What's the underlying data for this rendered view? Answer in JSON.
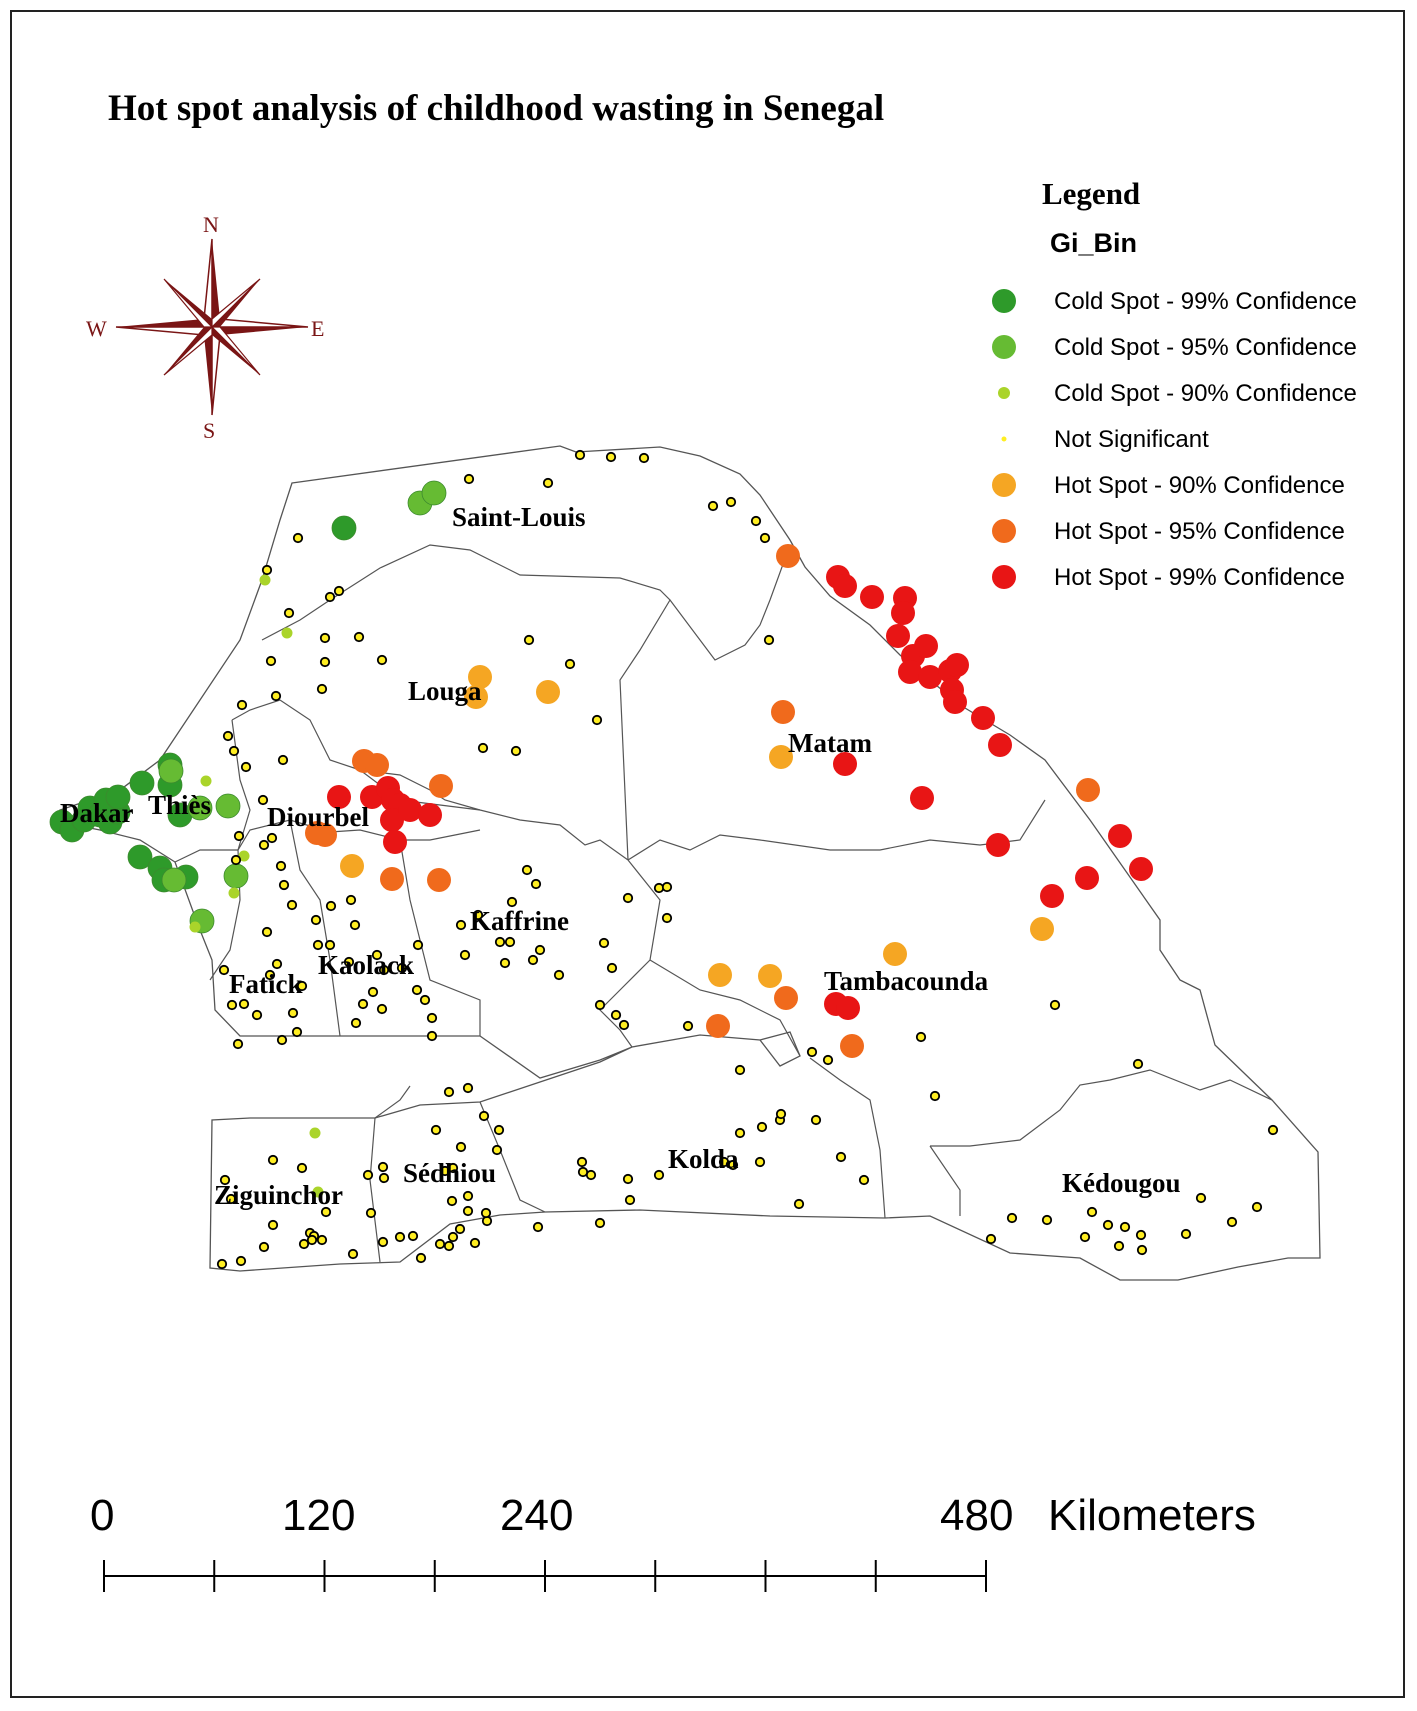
{
  "title": "Hot spot analysis of childhood wasting in Senegal",
  "compass": {
    "north": "N",
    "south": "S",
    "east": "E",
    "west": "W"
  },
  "legend": {
    "title": "Legend",
    "field": "Gi_Bin",
    "items": [
      {
        "key": "cold99",
        "label": "Cold Spot - 99% Confidence",
        "color": "#2e9a2a"
      },
      {
        "key": "cold95",
        "label": "Cold Spot - 95% Confidence",
        "color": "#66bb33"
      },
      {
        "key": "cold90",
        "label": "Cold Spot - 90% Confidence",
        "color": "#aad42a"
      },
      {
        "key": "ns",
        "label": "Not Significant",
        "color": "#ffee22"
      },
      {
        "key": "hot90",
        "label": "Hot Spot - 90% Confidence",
        "color": "#f5a623"
      },
      {
        "key": "hot95",
        "label": "Hot Spot - 95% Confidence",
        "color": "#f06a1c"
      },
      {
        "key": "hot99",
        "label": "Hot Spot - 99% Confidence",
        "color": "#e81515"
      }
    ]
  },
  "regions": [
    "Saint-Louis",
    "Louga",
    "Matam",
    "Dakar",
    "Thiès",
    "Diourbel",
    "Kaffrine",
    "Kaolack",
    "Fatick",
    "Tambacounda",
    "Ziguinchor",
    "Sédhiou",
    "Kolda",
    "Kédougou"
  ],
  "scale_bar": {
    "ticks": [
      "0",
      "120",
      "240",
      "480"
    ],
    "unit": "Kilometers"
  }
}
